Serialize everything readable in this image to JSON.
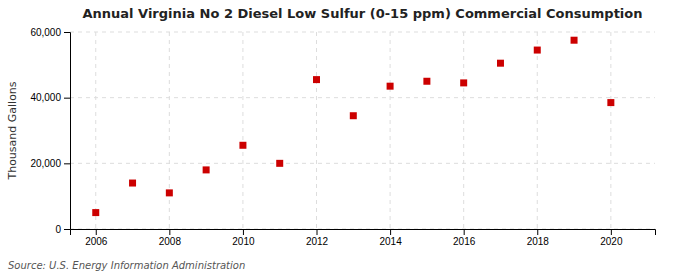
{
  "chart_data": {
    "type": "scatter",
    "title": "Annual Virginia No 2 Diesel Low Sulfur (0-15 ppm) Commercial Consumption",
    "ylabel": "Thousand Gallons",
    "annotations": [
      "Source: U.S. Energy Information Administration"
    ],
    "x": [
      2006,
      2007,
      2008,
      2009,
      2010,
      2011,
      2012,
      2013,
      2014,
      2015,
      2016,
      2017,
      2018,
      2019,
      2020
    ],
    "values": [
      5000,
      14000,
      11000,
      18000,
      25500,
      20000,
      45500,
      34500,
      43500,
      45000,
      44500,
      50500,
      54500,
      57500,
      38500
    ],
    "color": "#cc0000",
    "marker": "square",
    "xlim": [
      2005.3,
      2021.2
    ],
    "xticks": [
      2006,
      2008,
      2010,
      2012,
      2014,
      2016,
      2018,
      2020
    ],
    "ylim": [
      0,
      60000
    ],
    "yticks": [
      0,
      {
        "value": 20000,
        "label": "20,000"
      },
      {
        "value": 40000,
        "label": "40,000"
      },
      {
        "value": 60000,
        "label": "60,000"
      }
    ],
    "grid": true
  }
}
